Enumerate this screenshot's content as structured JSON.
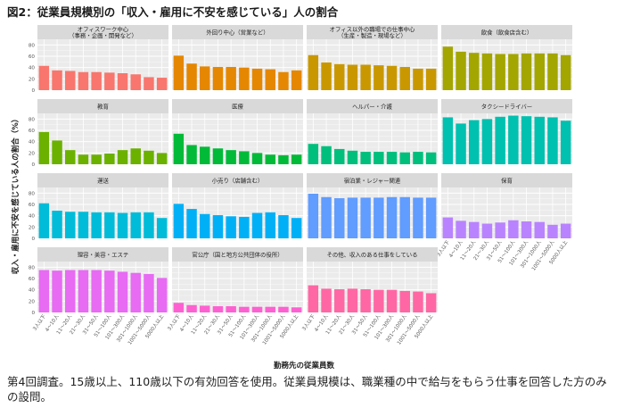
{
  "title": "図2：従業員規模別の「収入・雇用に不安を感じている」人の割合",
  "caption": "第4回調査。15歳以上、110歳以下の有効回答を使用。従業員規模は、職業種の中で給与をもらう仕事を回答した方のみの設問。",
  "chart_data": {
    "type": "bar",
    "xlabel": "勤務先の従業員数",
    "ylabel": "収入・雇用に不安を感じている人の割合（%）",
    "ylim": [
      0,
      90
    ],
    "yticks": [
      0,
      20,
      40,
      60,
      80
    ],
    "grid": true,
    "categories": [
      "3人以下",
      "4～10人",
      "11～20人",
      "21～30人",
      "31～50人",
      "51～100人",
      "101～300人",
      "301～1000人",
      "1001～5000人",
      "5000人以上"
    ],
    "panels": [
      {
        "title": [
          "オフィスワーク中心",
          "（事務・企画・開発など）"
        ],
        "color": "#F8766D",
        "values": [
          43,
          35,
          34,
          32,
          32,
          31,
          30,
          28,
          23,
          22
        ]
      },
      {
        "title": [
          "外回り中心（営業など）"
        ],
        "color": "#E58700",
        "values": [
          61,
          47,
          42,
          41,
          41,
          40,
          38,
          37,
          32,
          35
        ]
      },
      {
        "title": [
          "オフィス以外の職場での仕事中心",
          "（生産・製造・現場など）"
        ],
        "color": "#C99800",
        "values": [
          62,
          49,
          46,
          45,
          45,
          44,
          43,
          41,
          38,
          38
        ]
      },
      {
        "title": [
          "飲食（飲食店含む）"
        ],
        "color": "#A3A500",
        "values": [
          77,
          68,
          66,
          65,
          64,
          64,
          65,
          65,
          65,
          62
        ]
      },
      {
        "title": [
          "教育"
        ],
        "color": "#6BB100",
        "values": [
          57,
          42,
          25,
          17,
          17,
          19,
          25,
          28,
          24,
          20
        ]
      },
      {
        "title": [
          "医療"
        ],
        "color": "#00BA38",
        "values": [
          54,
          34,
          31,
          28,
          25,
          23,
          20,
          17,
          16,
          17
        ]
      },
      {
        "title": [
          "ヘルパー・介護"
        ],
        "color": "#00BF7D",
        "values": [
          36,
          32,
          27,
          24,
          22,
          22,
          22,
          21,
          22,
          21
        ]
      },
      {
        "title": [
          "タクシードライバー"
        ],
        "color": "#00C0AF",
        "values": [
          83,
          72,
          78,
          80,
          84,
          86,
          85,
          84,
          83,
          77
        ]
      },
      {
        "title": [
          "運送"
        ],
        "color": "#00BCD8",
        "values": [
          62,
          49,
          47,
          47,
          46,
          46,
          45,
          46,
          46,
          36
        ]
      },
      {
        "title": [
          "小売り（店舗含む）"
        ],
        "color": "#00B0F6",
        "values": [
          61,
          52,
          43,
          41,
          39,
          38,
          45,
          46,
          41,
          36
        ]
      },
      {
        "title": [
          "宿泊業・レジャー関連"
        ],
        "color": "#619CFF",
        "values": [
          79,
          73,
          71,
          72,
          72,
          72,
          73,
          73,
          72,
          72
        ]
      },
      {
        "title": [
          "保育"
        ],
        "color": "#B983FF",
        "values": [
          37,
          31,
          29,
          26,
          28,
          32,
          30,
          29,
          24,
          26
        ]
      },
      {
        "title": [
          "理容・美容・エステ"
        ],
        "color": "#E76BF3",
        "values": [
          75,
          74,
          75,
          75,
          75,
          74,
          72,
          70,
          68,
          61
        ]
      },
      {
        "title": [
          "官公庁（国と地方公共団体の役所）"
        ],
        "color": "#FD61D1",
        "values": [
          17,
          13,
          12,
          11,
          11,
          10,
          10,
          10,
          10,
          9
        ]
      },
      {
        "title": [
          "その他、収入のある仕事をしている"
        ],
        "color": "#FF67A4",
        "values": [
          48,
          42,
          41,
          42,
          41,
          40,
          40,
          38,
          37,
          34
        ]
      }
    ]
  }
}
